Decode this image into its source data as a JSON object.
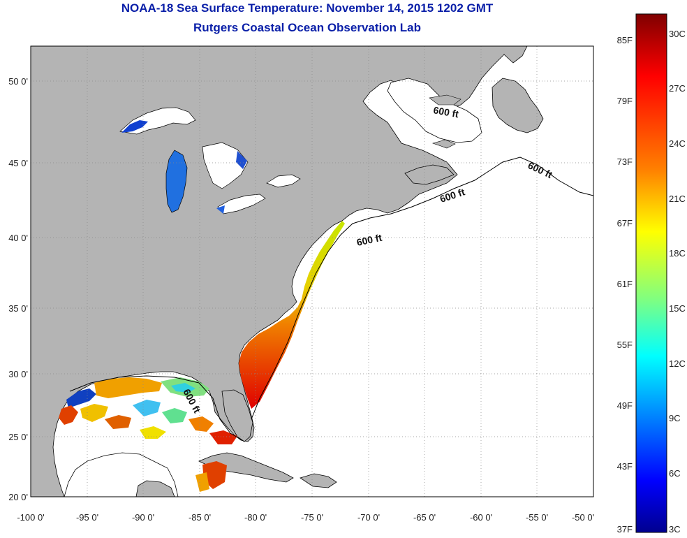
{
  "title": "NOAA-18 Sea Surface Temperature:  November 14, 2015 1202 GMT",
  "subtitle": "Rutgers Coastal Ocean Observation Lab",
  "map": {
    "x_ticks": [
      "-100 0'",
      "-95 0'",
      "-90 0'",
      "-85 0'",
      "-80 0'",
      "-75 0'",
      "-70 0'",
      "-65 0'",
      "-60 0'",
      "-55 0'",
      "-50 0'"
    ],
    "y_ticks": [
      "50 0'",
      "45 0'",
      "40 0'",
      "35 0'",
      "30 0'",
      "25 0'",
      "20 0'"
    ],
    "contour_label": "600 ft",
    "colors": {
      "land": "#b4b4b4",
      "ocean_no_data": "#ffffff",
      "coastline": "#000000"
    }
  },
  "colorbar": {
    "fahrenheit": [
      "85F",
      "79F",
      "73F",
      "67F",
      "61F",
      "55F",
      "49F",
      "43F",
      "37F"
    ],
    "celsius": [
      "30C",
      "27C",
      "24C",
      "21C",
      "18C",
      "15C",
      "12C",
      "9C",
      "6C",
      "3C"
    ],
    "colors": [
      "#7f0000",
      "#ff0000",
      "#ff8000",
      "#ffff00",
      "#80ff80",
      "#00ffff",
      "#0080ff",
      "#0000ff",
      "#00008f"
    ]
  }
}
